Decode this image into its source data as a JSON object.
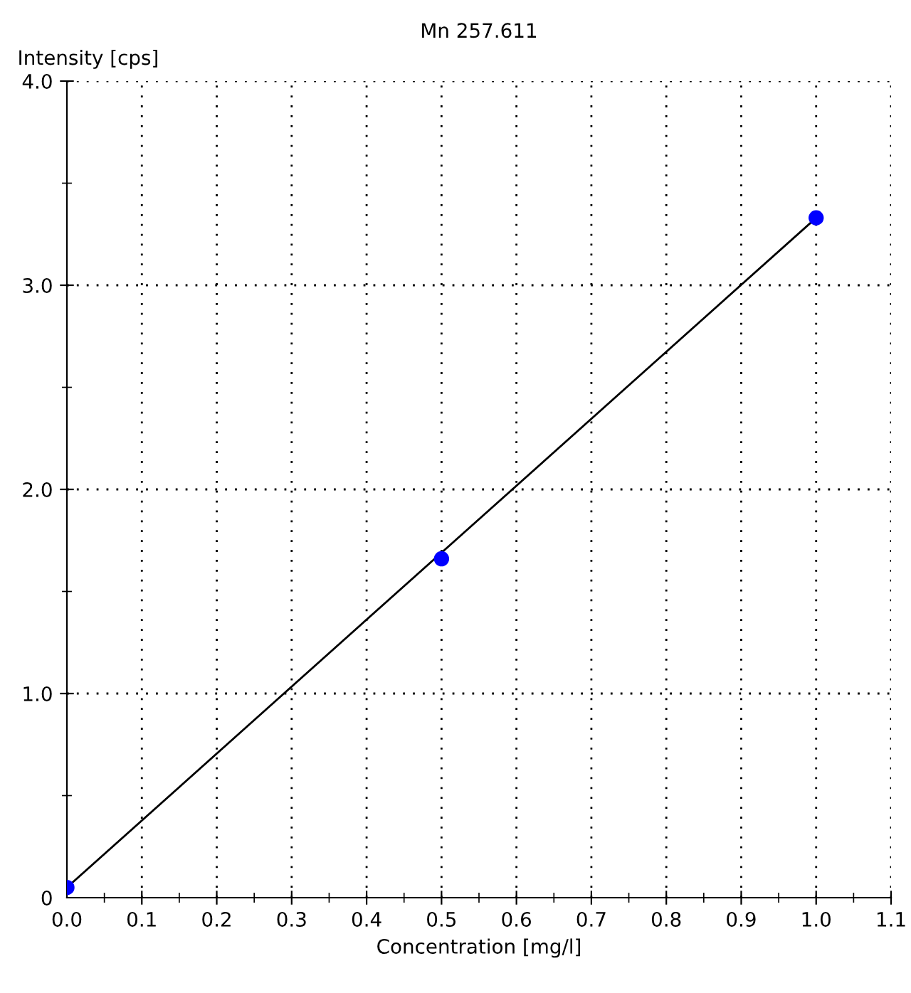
{
  "chart_data": {
    "type": "scatter",
    "title": "Mn 257.611",
    "xlabel": "Concentration [mg/l]",
    "ylabel": "Intensity [cps]",
    "series": [
      {
        "type": "line",
        "color": "#000000",
        "x": [
          0,
          1.0
        ],
        "values": [
          0.05,
          3.33
        ],
        "marker": "none"
      },
      {
        "color": "#0000ff",
        "x": [
          0,
          0.5,
          1.0
        ],
        "values": [
          0.05,
          1.66,
          3.33
        ],
        "marker": "circle"
      }
    ],
    "xlim": [
      0,
      1.1
    ],
    "ylim": [
      0,
      4.0
    ],
    "xticks": [
      {
        "value": 0,
        "label": "0.0"
      },
      {
        "value": 0.05,
        "label": null
      },
      {
        "value": 0.1,
        "label": "0.1"
      },
      {
        "value": 0.15,
        "label": null
      },
      {
        "value": 0.2,
        "label": "0.2"
      },
      {
        "value": 0.25,
        "label": null
      },
      {
        "value": 0.3,
        "label": "0.3"
      },
      {
        "value": 0.35,
        "label": null
      },
      {
        "value": 0.4,
        "label": "0.4"
      },
      {
        "value": 0.45,
        "label": null
      },
      {
        "value": 0.5,
        "label": "0.5"
      },
      {
        "value": 0.55,
        "label": null
      },
      {
        "value": 0.6,
        "label": "0.6"
      },
      {
        "value": 0.65,
        "label": null
      },
      {
        "value": 0.7,
        "label": "0.7"
      },
      {
        "value": 0.75,
        "label": null
      },
      {
        "value": 0.8,
        "label": "0.8"
      },
      {
        "value": 0.85,
        "label": null
      },
      {
        "value": 0.9,
        "label": "0.9"
      },
      {
        "value": 0.95,
        "label": null
      },
      {
        "value": 1.0,
        "label": "1.0"
      },
      {
        "value": 1.05,
        "label": null
      },
      {
        "value": 1.1,
        "label": "1.1"
      }
    ],
    "yticks": [
      {
        "value": 0,
        "label": "0"
      },
      {
        "value": 0.5,
        "label": null
      },
      {
        "value": 1.0,
        "label": "1.0"
      },
      {
        "value": 1.5,
        "label": null
      },
      {
        "value": 2.0,
        "label": "2.0"
      },
      {
        "value": 2.5,
        "label": null
      },
      {
        "value": 3.0,
        "label": "3.0"
      },
      {
        "value": 3.5,
        "label": null
      },
      {
        "value": 4.0,
        "label": "4.0"
      }
    ],
    "grid": true,
    "legend": false
  }
}
